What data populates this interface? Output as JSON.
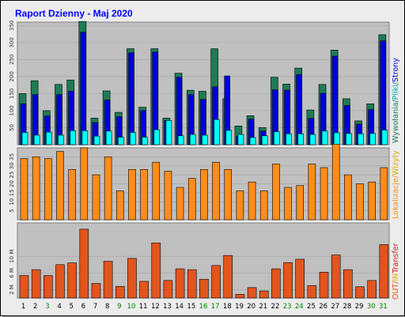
{
  "title": "Raport Dzienny -  Maj 2020",
  "colors": {
    "background": "#ececec",
    "panel": "#c0c0c0",
    "title": "#0000ff",
    "wizyty": "#1e7b55",
    "strony": "#0000e0",
    "pliki": "#00ffff",
    "lokalizacje": "#ff8c1a",
    "weekend_day": "#008000",
    "transfer_in_out": "#e2551d",
    "transfer": "#cc2222"
  },
  "chart_data": [
    {
      "type": "bar",
      "panel": "hits",
      "categories": [
        "1",
        "2",
        "3",
        "4",
        "5",
        "6",
        "7",
        "8",
        "9",
        "10",
        "11",
        "12",
        "13",
        "14",
        "15",
        "16",
        "17",
        "18",
        "19",
        "20",
        "21",
        "22",
        "23",
        "24",
        "25",
        "26",
        "27",
        "28",
        "29",
        "30",
        "31"
      ],
      "ylim": [
        0,
        360
      ],
      "yticks": [
        50,
        100,
        150,
        200,
        250,
        300,
        350
      ],
      "series": [
        {
          "name": "Wywołania",
          "values": [
            150,
            188,
            100,
            177,
            190,
            362,
            78,
            158,
            95,
            282,
            110,
            282,
            78,
            210,
            160,
            157,
            282,
            135,
            55,
            85,
            50,
            198,
            178,
            225,
            102,
            177,
            278,
            135,
            70,
            120,
            323
          ]
        },
        {
          "name": "Strony",
          "values": [
            120,
            147,
            84,
            147,
            157,
            330,
            65,
            131,
            82,
            270,
            100,
            272,
            71,
            198,
            147,
            133,
            170,
            202,
            25,
            75,
            40,
            161,
            160,
            206,
            77,
            151,
            260,
            115,
            60,
            103,
            305
          ]
        },
        {
          "name": "Pliki",
          "values": [
            36,
            28,
            37,
            28,
            41,
            41,
            25,
            40,
            22,
            36,
            22,
            44,
            71,
            26,
            30,
            28,
            74,
            42,
            30,
            21,
            26,
            38,
            32,
            32,
            30,
            40,
            35,
            33,
            32,
            33,
            43
          ]
        }
      ]
    },
    {
      "type": "bar",
      "panel": "visits",
      "categories": [
        "1",
        "2",
        "3",
        "4",
        "5",
        "6",
        "7",
        "8",
        "9",
        "10",
        "11",
        "12",
        "13",
        "14",
        "15",
        "16",
        "17",
        "18",
        "19",
        "20",
        "21",
        "22",
        "23",
        "24",
        "25",
        "26",
        "27",
        "28",
        "29",
        "30",
        "31"
      ],
      "ylim": [
        0,
        40
      ],
      "yticks": [
        5,
        10,
        15,
        20,
        25,
        30,
        35
      ],
      "series": [
        {
          "name": "Wizyty",
          "values": [
            34,
            35,
            34,
            38,
            28,
            40,
            25,
            35,
            16,
            28,
            28,
            32,
            27,
            18,
            23,
            28,
            32,
            28,
            16,
            21,
            16,
            31,
            18,
            19,
            31,
            29,
            42,
            25,
            20,
            21,
            29
          ]
        },
        {
          "name": "Lokalizacje",
          "values": [
            34,
            35,
            34,
            38,
            28,
            40,
            25,
            35,
            16,
            28,
            28,
            32,
            27,
            18,
            23,
            28,
            32,
            28,
            16,
            21,
            16,
            31,
            18,
            19,
            31,
            29,
            42,
            25,
            20,
            21,
            29
          ]
        }
      ]
    },
    {
      "type": "bar",
      "panel": "transfer",
      "categories": [
        "1",
        "2",
        "3",
        "4",
        "5",
        "6",
        "7",
        "8",
        "9",
        "10",
        "11",
        "12",
        "13",
        "14",
        "15",
        "16",
        "17",
        "18",
        "19",
        "20",
        "21",
        "22",
        "23",
        "24",
        "25",
        "26",
        "27",
        "28",
        "29",
        "30",
        "31"
      ],
      "ylim": [
        0,
        18
      ],
      "ytick_labels": [
        "2 M",
        "6 M",
        "10 M"
      ],
      "yticks": [
        2,
        6,
        10
      ],
      "series": [
        {
          "name": "Transfer",
          "values": [
            5.4,
            6.8,
            5.4,
            8.0,
            8.4,
            16.5,
            3.5,
            8.8,
            2.8,
            9.5,
            4.0,
            13.2,
            4.2,
            7.0,
            6.8,
            4.5,
            7.8,
            10.2,
            0.9,
            2.5,
            1.7,
            7.0,
            8.5,
            9.3,
            3.0,
            6.2,
            10.3,
            6.8,
            2.7,
            4.2,
            12.8
          ]
        }
      ]
    }
  ],
  "x_axis": {
    "labels": [
      "1",
      "2",
      "3",
      "4",
      "5",
      "6",
      "7",
      "8",
      "9",
      "10",
      "11",
      "12",
      "13",
      "14",
      "15",
      "16",
      "17",
      "18",
      "19",
      "20",
      "21",
      "22",
      "23",
      "24",
      "25",
      "26",
      "27",
      "28",
      "29",
      "30",
      "31"
    ],
    "weekend_days": [
      "3",
      "9",
      "10",
      "16",
      "17",
      "23",
      "24",
      "30",
      "31"
    ]
  },
  "side_legends": {
    "hits": [
      {
        "text": "Wywołania",
        "color": "#1e7b55"
      },
      {
        "text": "/",
        "color": "#1e7b55"
      },
      {
        "text": "Pliki",
        "color": "#00aaaa"
      },
      {
        "text": "/",
        "color": "#1e7b55"
      },
      {
        "text": "Strony",
        "color": "#0000e0"
      }
    ],
    "visits": [
      {
        "text": "Lokalizacje",
        "color": "#ff8c1a"
      },
      {
        "text": "/",
        "color": "#ff8c1a"
      },
      {
        "text": "Wizyty",
        "color": "#e0b000"
      }
    ],
    "transfer": [
      {
        "text": "OUT",
        "color": "#e2551d"
      },
      {
        "text": "/",
        "color": "#e2551d"
      },
      {
        "text": "IN",
        "color": "#e0b000"
      },
      {
        "text": "Transfer",
        "color": "#cc2222"
      }
    ]
  }
}
